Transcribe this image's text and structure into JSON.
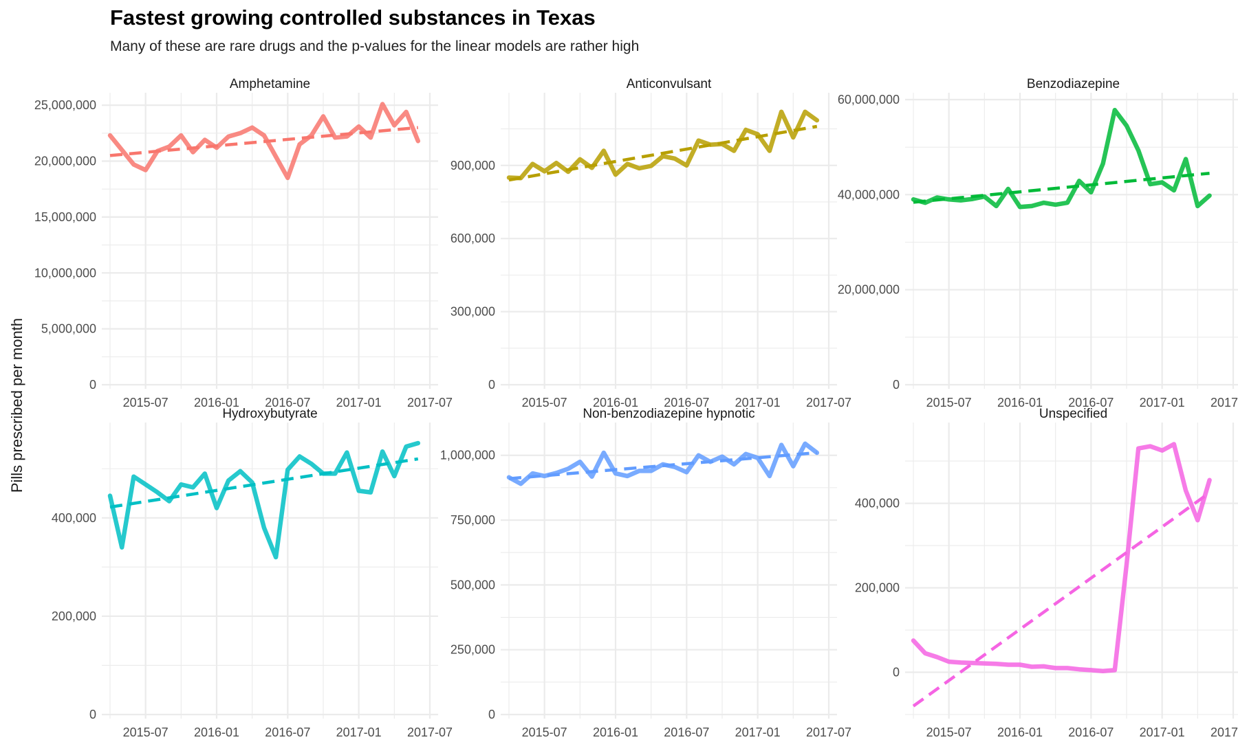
{
  "chart_data": {
    "type": "line",
    "title": "Fastest growing controlled substances in Texas",
    "subtitle": "Many of these are rare drugs and the p-values for the linear models are rather high",
    "ylabel": "Pills prescribed per month",
    "x_ticks": [
      "2015-07",
      "2016-01",
      "2016-07",
      "2017-01",
      "2017-07"
    ],
    "x_range": [
      "2015-04",
      "2017-07"
    ],
    "grid": true,
    "legend": "none",
    "series_style": "solid line = monthly value; dashed line = linear trend",
    "panels": [
      {
        "name": "Amphetamine",
        "color": "#F8766D",
        "ylim": [
          0,
          25500000
        ],
        "y_ticks": [
          0,
          5000000,
          10000000,
          15000000,
          20000000,
          25000000
        ],
        "y_tick_labels": [
          "0",
          "5,000,000",
          "10,000,000",
          "15,000,000",
          "20,000,000",
          "25,000,000"
        ],
        "x": [
          "2015-04",
          "2015-05",
          "2015-06",
          "2015-07",
          "2015-08",
          "2015-09",
          "2015-10",
          "2015-11",
          "2015-12",
          "2016-01",
          "2016-02",
          "2016-03",
          "2016-04",
          "2016-05",
          "2016-06",
          "2016-07",
          "2016-08",
          "2016-09",
          "2016-10",
          "2016-11",
          "2016-12",
          "2017-01",
          "2017-02",
          "2017-03",
          "2017-04",
          "2017-05",
          "2017-06"
        ],
        "values": [
          22300000,
          21000000,
          19700000,
          19200000,
          20900000,
          21300000,
          22300000,
          20800000,
          21900000,
          21200000,
          22200000,
          22500000,
          23000000,
          22300000,
          20400000,
          18500000,
          21500000,
          22300000,
          24000000,
          22100000,
          22200000,
          23100000,
          22100000,
          25100000,
          23200000,
          24400000,
          21800000
        ],
        "trend": [
          20500000,
          23000000
        ]
      },
      {
        "name": "Anticonvulsant",
        "color": "#B79F00",
        "ylim": [
          0,
          1170000
        ],
        "y_ticks": [
          0,
          300000,
          600000,
          900000
        ],
        "y_tick_labels": [
          "0",
          "300,000",
          "600,000",
          "900,000"
        ],
        "x": [
          "2015-04",
          "2015-05",
          "2015-06",
          "2015-07",
          "2015-08",
          "2015-09",
          "2015-10",
          "2015-11",
          "2015-12",
          "2016-01",
          "2016-02",
          "2016-03",
          "2016-04",
          "2016-05",
          "2016-06",
          "2016-07",
          "2016-08",
          "2016-09",
          "2016-10",
          "2016-11",
          "2016-12",
          "2017-01",
          "2017-02",
          "2017-03",
          "2017-04",
          "2017-05",
          "2017-06"
        ],
        "values": [
          850000,
          848000,
          906000,
          876000,
          910000,
          874000,
          925000,
          890000,
          960000,
          862000,
          906000,
          888000,
          898000,
          938000,
          928000,
          900000,
          1002000,
          985000,
          988000,
          960000,
          1046000,
          1028000,
          960000,
          1120000,
          1015000,
          1120000,
          1085000
        ],
        "trend": [
          840000,
          1060000
        ]
      },
      {
        "name": "Benzodiazepine",
        "color": "#00BA38",
        "ylim": [
          0,
          60000000
        ],
        "y_ticks": [
          0,
          20000000,
          40000000,
          60000000
        ],
        "y_tick_labels": [
          "0",
          "20,000,000",
          "40,000,000",
          "60,000,000"
        ],
        "x": [
          "2015-04",
          "2015-05",
          "2015-06",
          "2015-07",
          "2015-08",
          "2015-09",
          "2015-10",
          "2015-11",
          "2015-12",
          "2016-01",
          "2016-02",
          "2016-03",
          "2016-04",
          "2016-05",
          "2016-06",
          "2016-07",
          "2016-08",
          "2016-09",
          "2016-10",
          "2016-11",
          "2016-12",
          "2017-01",
          "2017-02",
          "2017-03",
          "2017-04",
          "2017-05"
        ],
        "values": [
          39000000,
          38300000,
          39400000,
          39000000,
          38800000,
          39100000,
          39600000,
          37600000,
          41200000,
          37400000,
          37600000,
          38300000,
          37900000,
          38300000,
          42900000,
          40500000,
          46500000,
          57800000,
          54500000,
          49300000,
          42200000,
          42600000,
          40900000,
          47500000,
          37600000,
          39800000
        ],
        "trend": [
          38400000,
          44500000
        ]
      },
      {
        "name": "Hydroxybutyrate",
        "color": "#00BFC4",
        "ylim": [
          0,
          580000
        ],
        "y_ticks": [
          0,
          200000,
          400000
        ],
        "y_tick_labels": [
          "0",
          "200,000",
          "400,000"
        ],
        "x": [
          "2015-04",
          "2015-05",
          "2015-06",
          "2015-07",
          "2015-08",
          "2015-09",
          "2015-10",
          "2015-11",
          "2015-12",
          "2016-01",
          "2016-02",
          "2016-03",
          "2016-04",
          "2016-05",
          "2016-06",
          "2016-07",
          "2016-08",
          "2016-09",
          "2016-10",
          "2016-11",
          "2016-12",
          "2017-01",
          "2017-02",
          "2017-03",
          "2017-04",
          "2017-05",
          "2017-06"
        ],
        "values": [
          445000,
          340000,
          484000,
          468000,
          452000,
          434000,
          468000,
          462000,
          490000,
          420000,
          476000,
          495000,
          472000,
          380000,
          320000,
          498000,
          525000,
          510000,
          490000,
          490000,
          533000,
          455000,
          452000,
          535000,
          485000,
          545000,
          552000
        ],
        "trend": [
          422000,
          520000
        ]
      },
      {
        "name": "Non-benzodiazepine hypnotic",
        "color": "#619CFF",
        "ylim": [
          0,
          1100000
        ],
        "y_ticks": [
          0,
          250000,
          500000,
          750000,
          1000000
        ],
        "y_tick_labels": [
          "0",
          "250,000",
          "500,000",
          "750,000",
          "1,000,000"
        ],
        "x": [
          "2015-04",
          "2015-05",
          "2015-06",
          "2015-07",
          "2015-08",
          "2015-09",
          "2015-10",
          "2015-11",
          "2015-12",
          "2016-01",
          "2016-02",
          "2016-03",
          "2016-04",
          "2016-05",
          "2016-06",
          "2016-07",
          "2016-08",
          "2016-09",
          "2016-10",
          "2016-11",
          "2016-12",
          "2017-01",
          "2017-02",
          "2017-03",
          "2017-04",
          "2017-05",
          "2017-06"
        ],
        "values": [
          915000,
          890000,
          930000,
          920000,
          932000,
          948000,
          975000,
          918000,
          1010000,
          930000,
          920000,
          940000,
          940000,
          965000,
          955000,
          935000,
          1000000,
          975000,
          995000,
          965000,
          1005000,
          990000,
          920000,
          1040000,
          958000,
          1045000,
          1010000
        ],
        "trend": [
          910000,
          1010000
        ]
      },
      {
        "name": "Unspecified",
        "color": "#F564E3",
        "ylim": [
          -100000,
          575000
        ],
        "y_ticks": [
          0,
          200000,
          400000
        ],
        "y_tick_labels": [
          "0",
          "200,000",
          "400,000"
        ],
        "x": [
          "2015-04",
          "2015-05",
          "2015-06",
          "2015-07",
          "2015-08",
          "2015-09",
          "2015-10",
          "2015-11",
          "2015-12",
          "2016-01",
          "2016-02",
          "2016-03",
          "2016-04",
          "2016-05",
          "2016-06",
          "2016-07",
          "2016-08",
          "2016-09",
          "2016-10",
          "2016-11",
          "2016-12",
          "2017-01",
          "2017-02",
          "2017-03",
          "2017-04",
          "2017-05"
        ],
        "values": [
          75000,
          45000,
          36000,
          25000,
          23000,
          22000,
          21000,
          20000,
          18000,
          18000,
          13000,
          14000,
          10000,
          10000,
          7000,
          5000,
          3000,
          5000,
          255000,
          530000,
          535000,
          525000,
          540000,
          430000,
          360000,
          455000
        ],
        "trend": [
          -80000,
          425000
        ]
      }
    ]
  }
}
